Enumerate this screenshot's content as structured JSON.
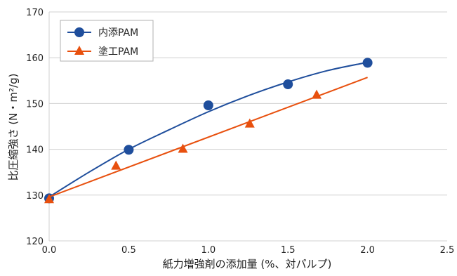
{
  "chart_data": {
    "type": "scatter",
    "title": "",
    "xlabel": "紙力増強剤の添加量 (%、対パルプ)",
    "ylabel": "比圧縮強さ (N・m²/g)",
    "xlim": [
      0,
      2.5
    ],
    "ylim": [
      120,
      170
    ],
    "x_ticks": [
      "0.0",
      "0.5",
      "1.0",
      "1.5",
      "2.0",
      "2.5"
    ],
    "y_ticks": [
      "120",
      "130",
      "140",
      "150",
      "160",
      "170"
    ],
    "grid": "horizontal",
    "legend_position": "top-left",
    "series": [
      {
        "name": "内添PAM",
        "marker": "circle",
        "color": "#1f4e9c",
        "x": [
          0.0,
          0.5,
          1.0,
          1.5,
          2.0
        ],
        "y": [
          129.3,
          139.9,
          149.6,
          154.2,
          158.9
        ],
        "fit": "quadratic",
        "fit_curve": {
          "x": [
            0.0,
            0.25,
            0.5,
            0.75,
            1.0,
            1.25,
            1.5,
            1.75,
            2.0
          ],
          "y": [
            129.6,
            135.0,
            140.0,
            144.2,
            148.2,
            151.7,
            154.7,
            157.2,
            159.0
          ]
        }
      },
      {
        "name": "塗工PAM",
        "marker": "triangle",
        "color": "#e8500e",
        "x": [
          0.0,
          0.42,
          0.84,
          1.26,
          1.68
        ],
        "y": [
          129.0,
          136.3,
          140.0,
          145.5,
          151.8
        ],
        "fit": "linear",
        "fit_curve": {
          "x": [
            0.0,
            2.0
          ],
          "y": [
            129.6,
            155.7
          ]
        }
      }
    ]
  }
}
